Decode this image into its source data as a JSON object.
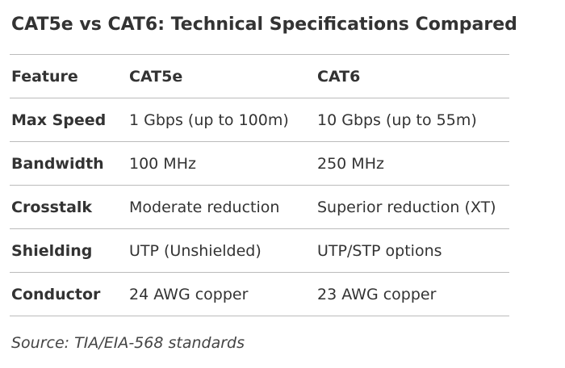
{
  "title": "CAT5e vs CAT6: Technical Specifications Compared",
  "table": {
    "header": [
      "Feature",
      "CAT5e",
      "CAT6"
    ],
    "rows": [
      [
        "Max Speed",
        "1 Gbps (up to 100m)",
        "10 Gbps (up to 55m)"
      ],
      [
        "Bandwidth",
        "100 MHz",
        "250 MHz"
      ],
      [
        "Crosstalk",
        "Moderate reduction",
        "Superior reduction (XT)"
      ],
      [
        "Shielding",
        "UTP (Unshielded)",
        "UTP/STP options"
      ],
      [
        "Conductor",
        "24 AWG copper",
        "23 AWG copper"
      ]
    ]
  },
  "source": "Source: TIA/EIA-568 standards"
}
